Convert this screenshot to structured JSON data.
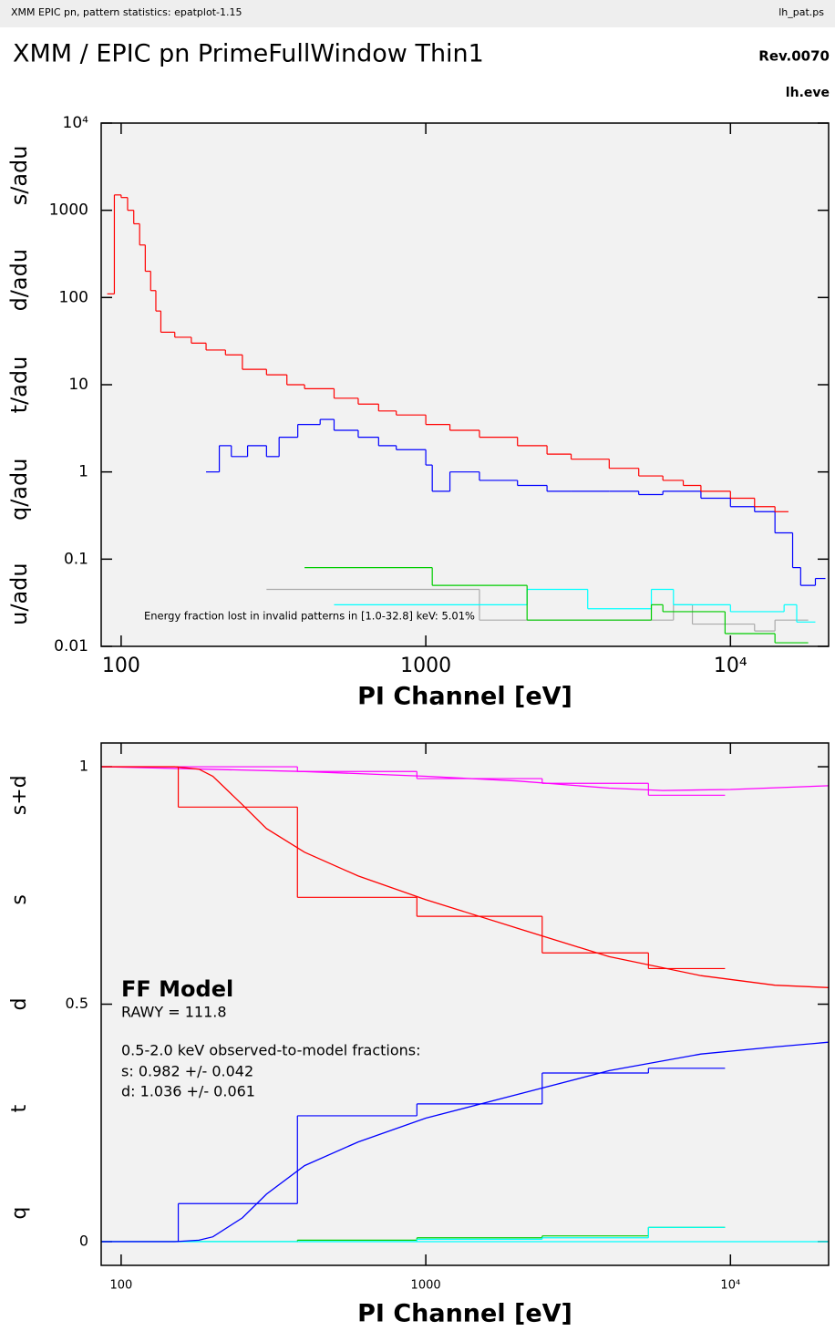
{
  "header": {
    "left": "XMM EPIC pn, pattern statistics: epatplot-1.15",
    "right": "lh_pat.ps"
  },
  "title": "XMM / EPIC pn PrimeFullWindow Thin1",
  "revision": "Rev.0070",
  "file": "lh.eve",
  "chart_data": [
    {
      "type": "step",
      "xlog": true,
      "ylog": true,
      "xlabel": "PI Channel [eV]",
      "xlim": [
        86,
        21000
      ],
      "ylim": [
        0.01,
        10000
      ],
      "xticks": [
        100,
        1000,
        {
          "value": 10000,
          "label": "10⁴"
        }
      ],
      "yticks": [
        0.01,
        0.1,
        1,
        10,
        100,
        1000,
        {
          "value": 10000,
          "label": "10⁴"
        }
      ],
      "side_labels": [
        {
          "text": "s/adu",
          "color": "#ff0000"
        },
        {
          "text": "d/adu",
          "color": "#0000ff"
        },
        {
          "text": "t/adu",
          "color": "#00cc00"
        },
        {
          "text": "q/adu",
          "color": "#00ffff"
        },
        {
          "text": "u/adu",
          "color": "#aaaaaa"
        }
      ],
      "annotation": "Energy fraction lost in invalid patterns in [1.0-32.8] keV:  5.01%",
      "series": [
        {
          "color": "#aaaaaa",
          "bins": [
            300,
            1500,
            6500,
            7500,
            12000,
            14000,
            18000
          ],
          "values": [
            0.045,
            0.02,
            0.03,
            0.018,
            0.015,
            0.02
          ]
        },
        {
          "color": "#00ffff",
          "bins": [
            500,
            2150,
            3400,
            5500,
            6500,
            10000,
            15000,
            16500,
            19000
          ],
          "values": [
            0.03,
            0.045,
            0.027,
            0.045,
            0.03,
            0.025,
            0.03,
            0.019
          ]
        },
        {
          "color": "#00cc00",
          "bins": [
            400,
            1050,
            2150,
            5500,
            6000,
            9600,
            14000,
            18000
          ],
          "values": [
            0.08,
            0.05,
            0.02,
            0.03,
            0.025,
            0.014,
            0.011
          ]
        },
        {
          "color": "#0000ff",
          "bins": [
            190,
            210,
            230,
            260,
            300,
            330,
            380,
            450,
            500,
            600,
            700,
            800,
            1000,
            1050,
            1200,
            1500,
            2000,
            2500,
            3000,
            4000,
            5000,
            6000,
            8000,
            10000,
            12000,
            14000,
            16000,
            17000,
            19000,
            20500
          ],
          "values": [
            1,
            2,
            1.5,
            2,
            1.5,
            2.5,
            3.5,
            4,
            3,
            2.5,
            2,
            1.8,
            1.2,
            0.6,
            1,
            0.8,
            0.7,
            0.6,
            0.6,
            0.6,
            0.55,
            0.6,
            0.5,
            0.4,
            0.35,
            0.2,
            0.08,
            0.05,
            0.06
          ]
        },
        {
          "color": "#ff0000",
          "bins": [
            90,
            95,
            100,
            105,
            110,
            115,
            120,
            125,
            130,
            135,
            150,
            170,
            190,
            220,
            250,
            300,
            350,
            400,
            500,
            600,
            700,
            800,
            1000,
            1200,
            1500,
            2000,
            2500,
            3000,
            4000,
            5000,
            6000,
            7000,
            8000,
            10000,
            12000,
            14000,
            15500
          ],
          "values": [
            110,
            1500,
            1400,
            1000,
            700,
            400,
            200,
            120,
            70,
            40,
            35,
            30,
            25,
            22,
            15,
            13,
            10,
            9,
            7,
            6,
            5,
            4.5,
            3.5,
            3,
            2.5,
            2,
            1.6,
            1.4,
            1.1,
            0.9,
            0.8,
            0.7,
            0.6,
            0.5,
            0.4,
            0.35
          ]
        }
      ]
    },
    {
      "type": "step",
      "xlog": true,
      "ylog": false,
      "xlabel": "PI Channel [eV]",
      "xlim": [
        86,
        21000
      ],
      "ylim": [
        -0.05,
        1.05
      ],
      "xticks": [
        100,
        1000,
        {
          "value": 10000,
          "label": "10⁴"
        }
      ],
      "yticks": [
        0,
        0.5,
        1
      ],
      "side_labels": [
        {
          "text": "s+d",
          "color": "#ff00ff"
        },
        {
          "text": "s",
          "color": "#ff0000"
        },
        {
          "text": "d",
          "color": "#0000ff"
        },
        {
          "text": "t",
          "color": "#00cc00"
        },
        {
          "text": "q",
          "color": "#00ffff"
        }
      ],
      "text_block": [
        "FF Model",
        "RAWY = 111.8",
        "0.5-2.0 keV observed-to-model fractions:",
        "s: 0.982 +/- 0.042",
        "d: 1.036 +/- 0.061"
      ],
      "series": [
        {
          "color": "#00ffff",
          "x": [
            86,
            21000
          ],
          "values": [
            0,
            0
          ]
        },
        {
          "color": "#00cc00",
          "bins": [
            86,
            154,
            379,
            935,
            2410,
            5380,
            9600
          ],
          "values": [
            0,
            0,
            0.003,
            0.008,
            0.012,
            0.03
          ]
        },
        {
          "color": "#00ffff",
          "bins": [
            86,
            154,
            379,
            935,
            2410,
            5380,
            9600
          ],
          "values": [
            0,
            0,
            0,
            0.005,
            0.008,
            0.03
          ]
        },
        {
          "color": "#ff00ff",
          "bins": [
            86,
            154,
            379,
            935,
            2410,
            5380,
            9600
          ],
          "values": [
            1,
            1,
            0.99,
            0.975,
            0.965,
            0.94
          ]
        },
        {
          "color": "#ff00ff",
          "x": [
            86,
            400,
            1000,
            2000,
            4000,
            6000,
            10000,
            21000
          ],
          "values": [
            1,
            0.99,
            0.98,
            0.97,
            0.955,
            0.95,
            0.952,
            0.96
          ]
        },
        {
          "color": "#ff0000",
          "bins": [
            86,
            154,
            379,
            935,
            2410,
            5380,
            9600
          ],
          "values": [
            1,
            0.915,
            0.725,
            0.685,
            0.608,
            0.575
          ]
        },
        {
          "color": "#ff0000",
          "x": [
            86,
            150,
            180,
            200,
            250,
            300,
            400,
            600,
            1000,
            2000,
            4000,
            8000,
            14000,
            21000
          ],
          "values": [
            1,
            1,
            0.995,
            0.98,
            0.92,
            0.87,
            0.82,
            0.77,
            0.72,
            0.66,
            0.6,
            0.56,
            0.54,
            0.535
          ]
        },
        {
          "color": "#0000ff",
          "bins": [
            86,
            154,
            379,
            935,
            2410,
            5380,
            9600
          ],
          "values": [
            0,
            0.08,
            0.265,
            0.29,
            0.355,
            0.365
          ]
        },
        {
          "color": "#0000ff",
          "x": [
            86,
            150,
            180,
            200,
            250,
            300,
            400,
            600,
            1000,
            2000,
            4000,
            8000,
            14000,
            21000
          ],
          "values": [
            0,
            0,
            0.003,
            0.01,
            0.05,
            0.1,
            0.16,
            0.21,
            0.26,
            0.31,
            0.36,
            0.395,
            0.41,
            0.42
          ]
        }
      ]
    }
  ]
}
